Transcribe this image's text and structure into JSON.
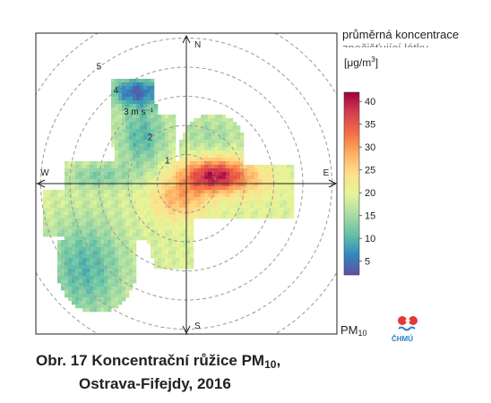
{
  "caption": {
    "line1_prefix": "Obr. 17  Koncentrační růžice PM",
    "line1_sub": "10",
    "line1_suffix": ",",
    "line2": "Ostrava-Fifejdy, 2016"
  },
  "legend": {
    "title_line1": "průměrná koncentrace",
    "title_line2": "znečišťující látky",
    "unit": "[μg/m",
    "unit_sup": "3",
    "unit_close": "]",
    "colors": [
      "#5e4fa2",
      "#3288bd",
      "#66c2a5",
      "#abdda4",
      "#e6f598",
      "#fee08b",
      "#fdae61",
      "#f46d43",
      "#d53e4f",
      "#9e0142"
    ]
  },
  "pollutant": {
    "label": "PM",
    "sub": "10",
    "logo_text": "ČHMÚ"
  },
  "chart_data": {
    "type": "heatmap",
    "subtype": "polar pollution rose",
    "station": "Ostrava-Fifejdy",
    "year": "2016",
    "directions": [
      "N",
      "E",
      "S",
      "W"
    ],
    "radial_label": "3 m s⁻¹",
    "radial_ticks": [
      1,
      2,
      3,
      4,
      5
    ],
    "radial_max": 6,
    "colorbar": {
      "min": 2,
      "max": 42,
      "ticks": [
        5,
        10,
        15,
        20,
        25,
        30,
        35,
        40
      ]
    },
    "grid": true,
    "legend_position": "right",
    "concentration_max_direction": "east-northeast, low wind speed",
    "concentration_max_approx": 40
  }
}
